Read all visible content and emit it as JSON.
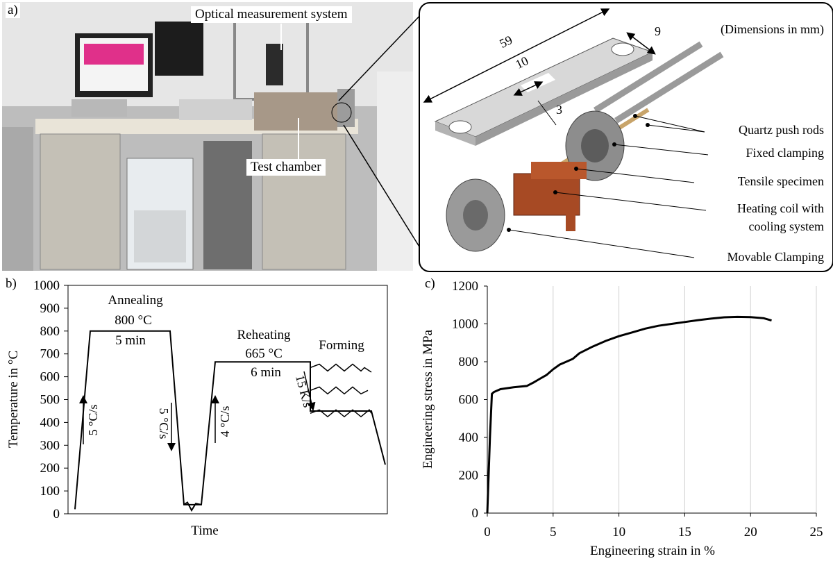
{
  "panel_a": {
    "letter": "a)",
    "labels": {
      "optical": "Optical measurement system",
      "chamber": "Test chamber"
    },
    "detail": {
      "units_note": "(Dimensions in mm)",
      "dims": {
        "length": "59",
        "width": "9",
        "gauge_length": "10",
        "gauge_width": "3"
      },
      "callouts": [
        "Quartz push rods",
        "Fixed clamping",
        "Tensile specimen",
        "Heating coil with",
        "cooling system",
        "Movable Clamping"
      ]
    }
  },
  "panel_b": {
    "letter": "b)",
    "chart_data": {
      "type": "line",
      "ylabel": "Temperature in °C",
      "xlabel": "Time",
      "ylim": [
        0,
        1000
      ],
      "yticks": [
        0,
        100,
        200,
        300,
        400,
        500,
        600,
        700,
        800,
        900,
        1000
      ],
      "annotations": {
        "annealing": "Annealing",
        "annealing_temp": "800 °C",
        "annealing_time": "5 min",
        "reheating": "Reheating",
        "reheating_temp": "665 °C",
        "reheating_time": "6 min",
        "forming": "Forming",
        "rate1": "5 °C/s",
        "rate2": "5 °C/s",
        "rate3": "4 °C/s",
        "rate4": "15 K/s"
      },
      "profile_temperature": [
        20,
        800,
        800,
        40,
        40,
        665,
        665,
        450,
        450,
        215
      ]
    }
  },
  "panel_c": {
    "letter": "c)",
    "chart_data": {
      "type": "line",
      "xlabel": "Engineering strain in %",
      "ylabel": "Engineering stress in MPa",
      "xlim": [
        0,
        25
      ],
      "ylim": [
        0,
        1200
      ],
      "xticks": [
        0,
        5,
        10,
        15,
        20,
        25
      ],
      "yticks": [
        0,
        200,
        400,
        600,
        800,
        1000,
        1200
      ],
      "grid": "vertical",
      "series": [
        {
          "x": [
            0,
            0.2,
            0.35,
            0.5,
            1,
            2,
            3,
            3.5,
            4,
            4.5,
            5,
            5.5,
            6,
            6.5,
            7,
            8,
            9,
            10,
            11,
            12,
            13,
            14,
            15,
            16,
            17,
            18,
            19,
            20,
            21,
            21.6
          ],
          "y": [
            0,
            400,
            630,
            640,
            655,
            665,
            672,
            690,
            710,
            730,
            760,
            785,
            800,
            815,
            845,
            880,
            910,
            935,
            955,
            975,
            990,
            1000,
            1010,
            1020,
            1028,
            1035,
            1037,
            1036,
            1030,
            1018
          ]
        }
      ]
    }
  }
}
